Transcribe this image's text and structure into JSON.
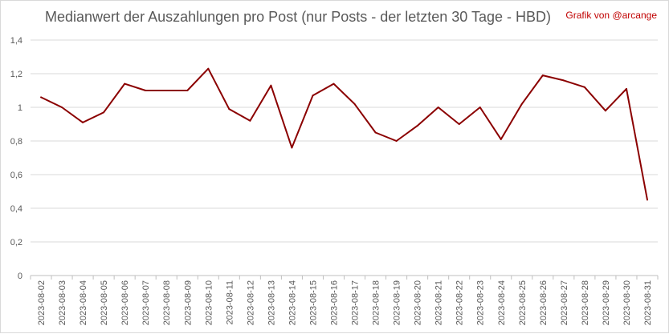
{
  "chart_data": {
    "type": "line",
    "title": "Medianwert der Auszahlungen pro Post (nur Posts - der letzten 30 Tage - HBD)",
    "annotation": "Grafik von @arcange",
    "xlabel": "",
    "ylabel": "",
    "ylim": [
      0,
      1.4
    ],
    "yticks": [
      "0",
      "0,2",
      "0,4",
      "0,6",
      "0,8",
      "1",
      "1,2",
      "1,4"
    ],
    "grid": true,
    "legend": "none",
    "line_color": "#8b0000",
    "categories": [
      "2023-08-02",
      "2023-08-03",
      "2023-08-04",
      "2023-08-05",
      "2023-08-06",
      "2023-08-07",
      "2023-08-08",
      "2023-08-09",
      "2023-08-10",
      "2023-08-11",
      "2023-08-12",
      "2023-08-13",
      "2023-08-14",
      "2023-08-15",
      "2023-08-16",
      "2023-08-17",
      "2023-08-18",
      "2023-08-19",
      "2023-08-20",
      "2023-08-21",
      "2023-08-22",
      "2023-08-23",
      "2023-08-24",
      "2023-08-25",
      "2023-08-26",
      "2023-08-27",
      "2023-08-28",
      "2023-08-29",
      "2023-08-30",
      "2023-08-31"
    ],
    "series": [
      {
        "values": [
          1.06,
          1.0,
          0.91,
          0.97,
          1.14,
          1.1,
          1.1,
          1.1,
          1.23,
          0.99,
          0.92,
          1.13,
          0.76,
          1.07,
          1.14,
          1.02,
          0.85,
          0.8,
          0.89,
          1.0,
          0.9,
          1.0,
          0.81,
          1.02,
          1.19,
          1.16,
          1.12,
          0.98,
          1.11,
          0.45
        ]
      }
    ]
  }
}
